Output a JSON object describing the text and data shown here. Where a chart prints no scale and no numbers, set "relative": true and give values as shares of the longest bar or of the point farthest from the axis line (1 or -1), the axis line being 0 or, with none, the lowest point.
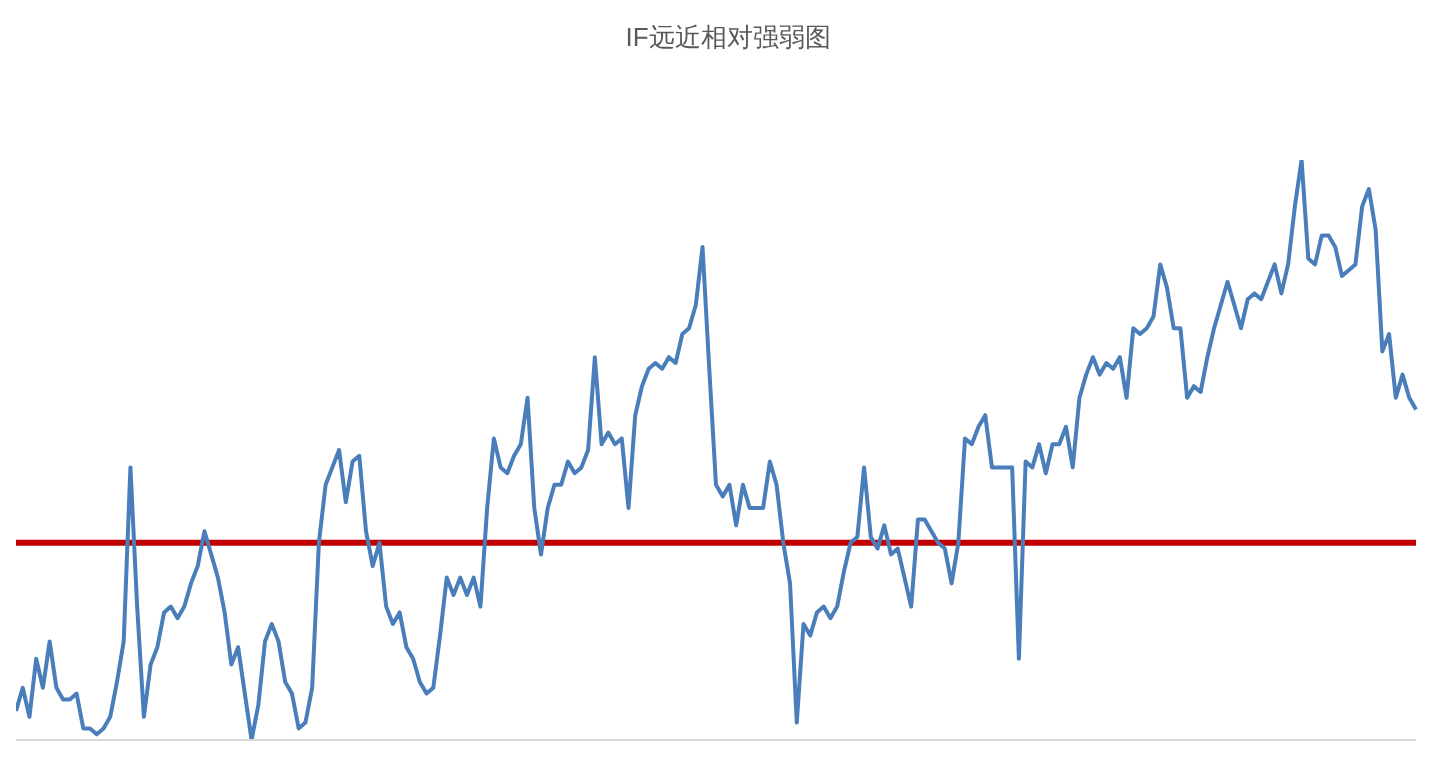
{
  "chart_data": {
    "type": "line",
    "title": "IF远近相对强弱图",
    "relative": true,
    "categories": [
      null,
      null,
      null,
      null,
      null,
      null,
      null,
      null,
      null,
      null,
      null,
      null,
      null,
      null,
      null,
      null,
      null,
      null,
      null,
      null,
      null,
      null,
      null,
      null,
      null,
      null,
      null,
      null,
      null,
      null,
      null,
      null,
      null,
      null,
      null,
      null,
      null,
      null,
      null,
      null,
      null,
      null,
      null,
      null,
      null,
      null,
      null,
      null,
      null,
      null,
      null,
      null,
      null,
      null,
      null,
      null,
      null,
      null,
      null,
      null,
      null,
      null,
      null,
      null,
      null,
      null,
      null,
      null,
      null,
      null,
      null,
      null,
      null,
      null,
      null,
      null,
      null,
      null,
      null,
      null,
      null,
      null,
      null,
      null,
      null,
      null,
      null,
      null,
      null,
      null,
      null,
      null,
      null,
      null,
      null,
      null,
      null,
      null,
      null,
      null,
      null,
      null,
      null,
      null,
      null,
      null,
      null,
      null,
      null,
      null,
      null,
      null,
      null,
      null,
      null,
      null,
      null,
      null,
      null,
      null,
      null,
      null,
      null,
      null,
      null,
      null,
      null,
      null,
      null,
      null,
      null,
      null,
      null,
      null,
      null,
      null,
      null,
      null,
      null,
      null,
      null,
      null,
      null,
      null,
      null,
      null,
      null,
      null,
      null,
      null,
      null,
      null,
      null,
      null,
      null,
      null,
      null,
      null,
      null,
      null,
      null,
      null,
      null,
      null,
      null,
      null,
      null,
      null,
      null,
      null,
      null,
      null,
      null,
      null,
      null,
      null,
      null,
      null,
      null,
      null,
      null,
      null,
      null,
      null,
      null,
      null,
      null,
      null,
      null,
      null,
      null,
      null,
      null,
      null,
      null,
      null,
      null,
      null,
      null,
      null,
      null,
      null,
      null,
      null,
      null,
      null,
      null,
      null,
      null
    ],
    "series": [
      {
        "color": "#4a7ebb",
        "values": [
          0.05,
          0.09,
          0.04,
          0.14,
          0.09,
          0.17,
          0.09,
          0.07,
          0.07,
          0.08,
          0.02,
          0.02,
          0.01,
          0.02,
          0.04,
          0.1,
          0.17,
          0.47,
          0.23,
          0.04,
          0.13,
          0.16,
          0.22,
          0.23,
          0.21,
          0.23,
          0.27,
          0.3,
          0.36,
          0.32,
          0.28,
          0.22,
          0.13,
          0.16,
          0.08,
          0.0,
          0.06,
          0.17,
          0.2,
          0.17,
          0.1,
          0.08,
          0.02,
          0.03,
          0.09,
          0.34,
          0.44,
          0.47,
          0.5,
          0.41,
          0.48,
          0.49,
          0.36,
          0.3,
          0.34,
          0.23,
          0.2,
          0.22,
          0.16,
          0.14,
          0.1,
          0.08,
          0.09,
          0.18,
          0.28,
          0.25,
          0.28,
          0.25,
          0.28,
          0.23,
          0.4,
          0.52,
          0.47,
          0.46,
          0.49,
          0.51,
          0.59,
          0.4,
          0.32,
          0.4,
          0.44,
          0.44,
          0.48,
          0.46,
          0.47,
          0.5,
          0.66,
          0.51,
          0.53,
          0.51,
          0.52,
          0.4,
          0.56,
          0.61,
          0.64,
          0.65,
          0.64,
          0.66,
          0.65,
          0.7,
          0.71,
          0.75,
          0.85,
          0.64,
          0.44,
          0.42,
          0.44,
          0.37,
          0.44,
          0.4,
          0.4,
          0.4,
          0.48,
          0.44,
          0.34,
          0.27,
          0.03,
          0.2,
          0.18,
          0.22,
          0.23,
          0.21,
          0.23,
          0.29,
          0.34,
          0.35,
          0.47,
          0.35,
          0.33,
          0.37,
          0.32,
          0.33,
          0.28,
          0.23,
          0.38,
          0.38,
          0.36,
          0.34,
          0.33,
          0.27,
          0.34,
          0.52,
          0.51,
          0.54,
          0.56,
          0.47,
          0.47,
          0.47,
          0.47,
          0.14,
          0.48,
          0.47,
          0.51,
          0.46,
          0.51,
          0.51,
          0.54,
          0.47,
          0.59,
          0.63,
          0.66,
          0.63,
          0.65,
          0.64,
          0.66,
          0.59,
          0.71,
          0.7,
          0.71,
          0.73,
          0.82,
          0.78,
          0.71,
          0.71,
          0.59,
          0.61,
          0.6,
          0.66,
          0.71,
          0.75,
          0.79,
          0.75,
          0.71,
          0.76,
          0.77,
          0.76,
          0.79,
          0.82,
          0.77,
          0.82,
          0.92,
          1,
          0.83,
          0.82,
          0.87,
          0.87,
          0.85,
          0.8,
          0.81,
          0.82,
          0.92,
          0.95,
          0.88,
          0.67,
          0.7,
          0.59,
          0.63,
          0.59,
          0.57
        ]
      }
    ],
    "ref_lines": [
      {
        "axis": "y",
        "value": 0.34,
        "color": "#c00000"
      }
    ],
    "marker": "none",
    "line_style": "solid"
  }
}
